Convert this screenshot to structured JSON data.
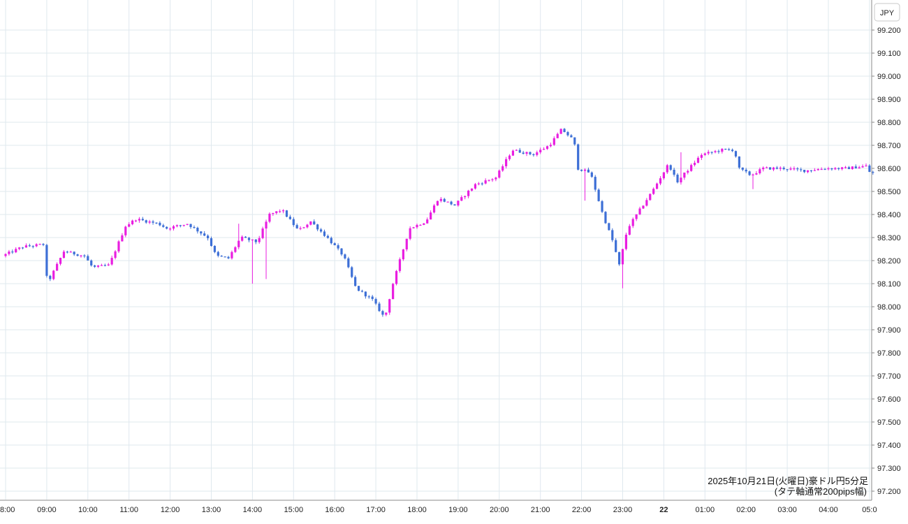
{
  "chart_data": {
    "type": "candlestick",
    "currency_label": "JPY",
    "caption": {
      "line1": "2025年10月21日(火曜日)豪ドル円5分足",
      "line2": "(タテ軸通常200pips幅)"
    },
    "y_ticks": [
      "99.200",
      "99.100",
      "99.000",
      "98.900",
      "98.800",
      "98.700",
      "98.600",
      "98.500",
      "98.400",
      "98.300",
      "98.200",
      "98.100",
      "98.000",
      "97.900",
      "97.800",
      "97.700",
      "97.600",
      "97.500",
      "97.400",
      "97.300",
      "97.200"
    ],
    "x_ticks": [
      "8:00",
      "09:00",
      "10:00",
      "11:00",
      "12:00",
      "13:00",
      "14:00",
      "15:00",
      "16:00",
      "17:00",
      "18:00",
      "19:00",
      "20:00",
      "21:00",
      "22:00",
      "23:00",
      "22",
      "01:00",
      "02:00",
      "03:00",
      "04:00",
      "05:0"
    ],
    "ylim": [
      97.17,
      99.27
    ],
    "x_range_hours": [
      8.0,
      29.1
    ],
    "bar_interval_minutes": 5,
    "colors": {
      "up": "#e91ee0",
      "down": "#3d6fd6",
      "grid": "#dfe8ee",
      "axis": "#888888"
    },
    "key_points": [
      [
        8.0,
        98.22
      ],
      [
        8.5,
        98.26
      ],
      [
        9.0,
        98.27
      ],
      [
        9.1,
        98.1
      ],
      [
        9.5,
        98.24
      ],
      [
        10.0,
        98.22
      ],
      [
        10.2,
        98.17
      ],
      [
        10.6,
        98.18
      ],
      [
        11.0,
        98.35
      ],
      [
        11.25,
        98.38
      ],
      [
        11.8,
        98.36
      ],
      [
        12.0,
        98.34
      ],
      [
        12.5,
        98.36
      ],
      [
        13.0,
        98.3
      ],
      [
        13.2,
        98.22
      ],
      [
        13.5,
        98.21
      ],
      [
        13.8,
        98.3
      ],
      [
        14.2,
        98.28
      ],
      [
        14.5,
        98.4
      ],
      [
        14.8,
        98.42
      ],
      [
        15.2,
        98.33
      ],
      [
        15.5,
        98.37
      ],
      [
        15.9,
        98.3
      ],
      [
        16.3,
        98.22
      ],
      [
        16.6,
        98.08
      ],
      [
        17.0,
        98.03
      ],
      [
        17.3,
        97.95
      ],
      [
        17.5,
        98.1
      ],
      [
        17.9,
        98.34
      ],
      [
        18.3,
        98.37
      ],
      [
        18.6,
        98.47
      ],
      [
        19.0,
        98.44
      ],
      [
        19.5,
        98.53
      ],
      [
        20.0,
        98.56
      ],
      [
        20.4,
        98.68
      ],
      [
        20.9,
        98.66
      ],
      [
        21.3,
        98.7
      ],
      [
        21.6,
        98.77
      ],
      [
        21.9,
        98.72
      ],
      [
        22.0,
        98.6
      ],
      [
        22.3,
        98.58
      ],
      [
        22.6,
        98.4
      ],
      [
        22.85,
        98.28
      ],
      [
        23.0,
        98.18
      ],
      [
        23.2,
        98.34
      ],
      [
        23.5,
        98.42
      ],
      [
        23.8,
        98.5
      ],
      [
        24.2,
        98.62
      ],
      [
        24.4,
        98.54
      ],
      [
        24.7,
        98.6
      ],
      [
        25.0,
        98.66
      ],
      [
        25.5,
        98.68
      ],
      [
        25.8,
        98.68
      ],
      [
        25.9,
        98.6
      ],
      [
        26.2,
        98.57
      ],
      [
        26.5,
        98.6
      ],
      [
        27.0,
        98.6
      ],
      [
        27.5,
        98.59
      ],
      [
        28.0,
        98.6
      ],
      [
        28.5,
        98.6
      ],
      [
        29.0,
        98.61
      ],
      [
        29.1,
        98.58
      ]
    ],
    "spikes": [
      {
        "t": 14.0,
        "low": 98.1
      },
      {
        "t": 14.3,
        "low": 98.12
      },
      {
        "t": 13.7,
        "high": 98.36
      },
      {
        "t": 22.1,
        "low": 98.46
      },
      {
        "t": 23.0,
        "low": 98.08
      },
      {
        "t": 24.4,
        "high": 98.67
      },
      {
        "t": 26.2,
        "low": 98.51
      }
    ]
  }
}
